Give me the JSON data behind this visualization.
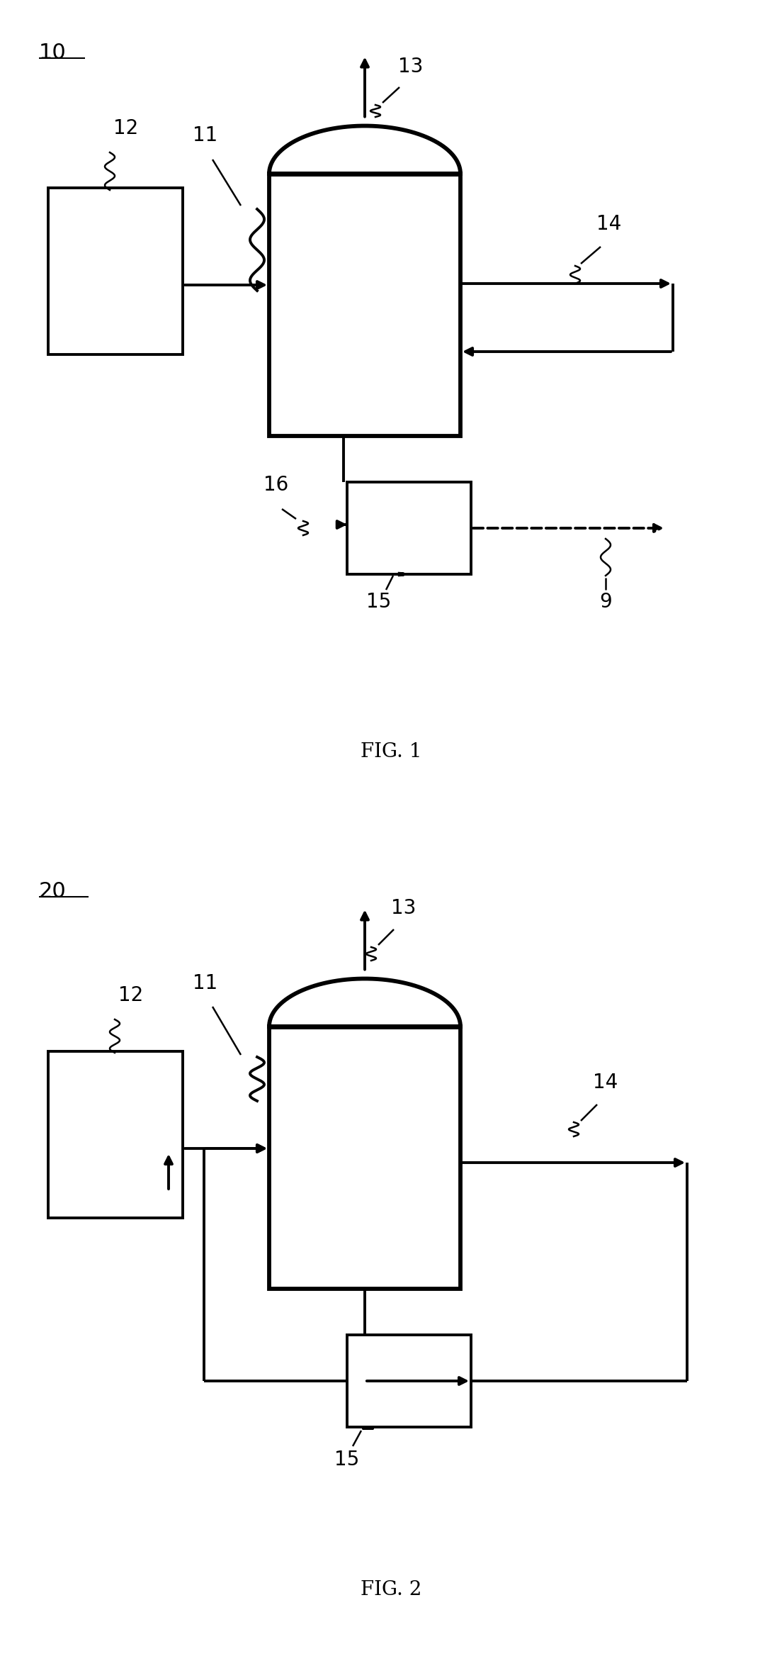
{
  "bg_color": "#ffffff",
  "lc": "#000000",
  "lw": 2.8,
  "lw_thick": 4.2,
  "lw_thin": 1.8,
  "fontsize_label": 20,
  "fontsize_fig": 18,
  "fontsize_num": 22
}
